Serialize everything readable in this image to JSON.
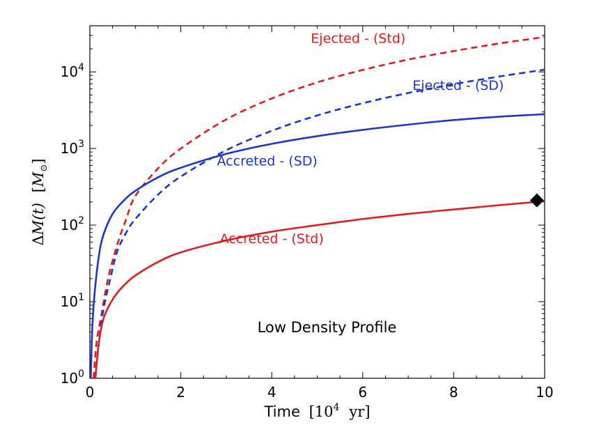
{
  "chart_data": {
    "type": "line",
    "title": "",
    "xlabel": "Time",
    "xlabel_unit_base": "10",
    "xlabel_unit_exp": "4",
    "xlabel_unit_tail": "yr",
    "ylabel_delta": "Δ",
    "ylabel_var": "M(t)",
    "ylabel_unit": "M",
    "ylabel_unit_sub": "⊙",
    "xlim": [
      0,
      10
    ],
    "ylim": [
      1,
      40000
    ],
    "yscale": "log",
    "grid": false,
    "x_ticks": [
      0,
      2,
      4,
      6,
      8,
      10
    ],
    "x_tick_labels": [
      "0",
      "2",
      "4",
      "6",
      "8",
      "10"
    ],
    "y_ticks": [
      1,
      10,
      100,
      1000,
      10000
    ],
    "y_tick_base": "10",
    "y_tick_exps": [
      "0",
      "1",
      "2",
      "3",
      "4"
    ],
    "annotation": "Low Density Profile",
    "colors": {
      "red": "#e41a1c",
      "blue": "#1a35d0"
    },
    "series": [
      {
        "name": "Ejected - (Std)",
        "color": "#e41a1c",
        "dash": true,
        "x": [
          0.08,
          0.15,
          0.25,
          0.4,
          0.6,
          0.8,
          1.0,
          1.5,
          2.0,
          3.0,
          4.0,
          5.0,
          6.0,
          7.0,
          8.0,
          9.0,
          10.0
        ],
        "y": [
          1,
          3,
          6.5,
          20,
          55,
          120,
          240,
          550,
          1000,
          2400,
          4500,
          7300,
          10600,
          14500,
          18700,
          23500,
          28500
        ]
      },
      {
        "name": "Ejected - (SD)",
        "color": "#1a35d0",
        "dash": true,
        "x": [
          0.12,
          0.2,
          0.3,
          0.45,
          0.6,
          0.8,
          1.0,
          1.5,
          2.0,
          3.0,
          4.0,
          5.0,
          6.0,
          7.0,
          8.0,
          9.0,
          10.0
        ],
        "y": [
          1,
          3,
          8,
          20,
          45,
          80,
          120,
          250,
          430,
          950,
          1700,
          2700,
          3900,
          5300,
          6900,
          8700,
          10700
        ]
      },
      {
        "name": "Accreted - (SD)",
        "color": "#1a35d0",
        "dash": false,
        "x": [
          0.02,
          0.05,
          0.1,
          0.2,
          0.3,
          0.5,
          0.75,
          1.0,
          1.5,
          2.0,
          3.0,
          4.0,
          5.0,
          6.0,
          7.0,
          8.0,
          9.0,
          10.0
        ],
        "y": [
          1,
          4,
          12,
          40,
          75,
          140,
          210,
          280,
          420,
          560,
          850,
          1150,
          1450,
          1750,
          2050,
          2350,
          2600,
          2800
        ]
      },
      {
        "name": "Accreted - (Std)",
        "color": "#e41a1c",
        "dash": false,
        "x": [
          0.12,
          0.2,
          0.3,
          0.45,
          0.6,
          0.8,
          1.0,
          1.5,
          2.0,
          3.0,
          4.0,
          5.0,
          6.0,
          7.0,
          8.0,
          9.0,
          10.0
        ],
        "y": [
          1,
          3,
          6,
          9.5,
          13,
          17.5,
          22,
          33,
          44,
          63,
          82,
          100,
          120,
          140,
          160,
          182,
          205
        ]
      }
    ],
    "labels": [
      {
        "text": "Ejected - (Std)",
        "x": 5.9,
        "y": 24000,
        "color": "#e41a1c"
      },
      {
        "text": "Ejected - (SD)",
        "x": 8.1,
        "y": 5800,
        "color": "#1a35d0"
      },
      {
        "text": "Accreted - (SD)",
        "x": 3.9,
        "y": 600,
        "color": "#1a35d0"
      },
      {
        "text": "Accreted - (Std)",
        "x": 4.0,
        "y": 58,
        "color": "#e41a1c"
      }
    ],
    "marker": {
      "shape": "diamond",
      "x": 9.83,
      "y": 210,
      "color": "#000000"
    }
  }
}
